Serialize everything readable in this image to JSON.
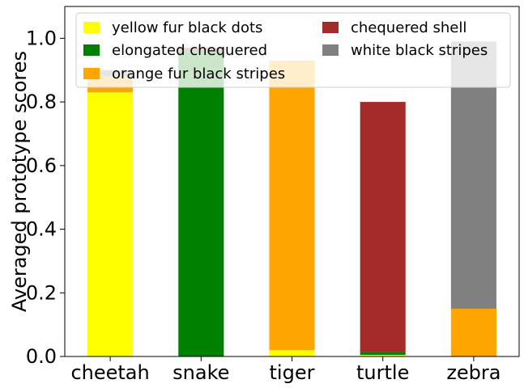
{
  "chart_data": {
    "type": "bar",
    "stacked": true,
    "categories": [
      "cheetah",
      "snake",
      "tiger",
      "turtle",
      "zebra"
    ],
    "series": [
      {
        "name": "yellow fur black dots",
        "color": "#ffff00",
        "values": [
          0.83,
          0.0,
          0.02,
          0.005,
          0.0
        ]
      },
      {
        "name": "elongated chequered",
        "color": "#008000",
        "values": [
          0.0,
          0.96,
          0.0,
          0.01,
          0.0
        ]
      },
      {
        "name": "orange fur black stripes",
        "color": "#ffa500",
        "values": [
          0.05,
          0.0,
          0.91,
          0.0,
          0.15
        ]
      },
      {
        "name": "chequered shell",
        "color": "#a52a2a",
        "values": [
          0.0,
          0.01,
          0.0,
          0.785,
          0.0
        ]
      },
      {
        "name": "white black stripes",
        "color": "#808080",
        "values": [
          0.02,
          0.0,
          0.0,
          0.0,
          0.84
        ]
      }
    ],
    "ylabel": "Averaged prototype scores",
    "xlabel": "",
    "ylim": [
      0,
      1.0
    ],
    "yticks": [
      "0.0",
      "0.2",
      "0.4",
      "0.6",
      "0.8",
      "1.0"
    ],
    "grid": false,
    "legend_placement": "top"
  }
}
